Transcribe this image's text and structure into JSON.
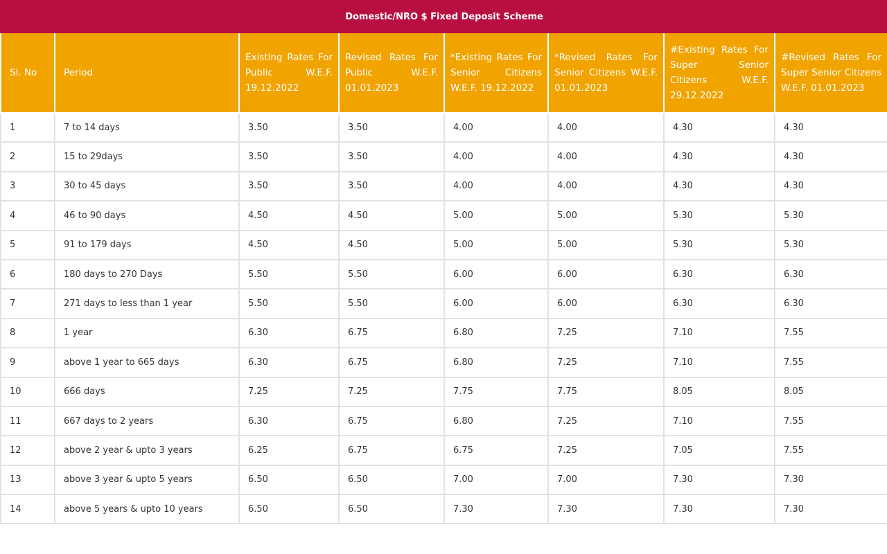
{
  "table": {
    "title": "Domestic/NRO $ Fixed Deposit Scheme",
    "header": [
      "Sl. No",
      "Period",
      "Existing Rates For Public W.E.F. 19.12.2022",
      "Revised Rates For Public W.E.F. 01.01.2023",
      "*Existing Rates For Senior Citizens W.E.F. 19.12.2022",
      "*Revised Rates For Senior Citizens W.E.F. 01.01.2023",
      "#Existing Rates For Super Senior Citizens W.E.F. 29.12.2022",
      "#Revised Rates For Super Senior Citizens W.E.F. 01.01.2023"
    ],
    "rows": [
      [
        "1",
        "7 to 14 days",
        "3.50",
        "3.50",
        "4.00",
        "4.00",
        "4.30",
        "4.30"
      ],
      [
        "2",
        "15 to 29days",
        "3.50",
        "3.50",
        "4.00",
        "4.00",
        "4.30",
        "4.30"
      ],
      [
        "3",
        "30 to 45 days",
        "3.50",
        "3.50",
        "4.00",
        "4.00",
        "4.30",
        "4.30"
      ],
      [
        "4",
        "46 to 90 days",
        "4.50",
        "4.50",
        "5.00",
        "5.00",
        "5.30",
        "5.30"
      ],
      [
        "5",
        "91 to 179 days",
        "4.50",
        "4.50",
        "5.00",
        "5.00",
        "5.30",
        "5.30"
      ],
      [
        "6",
        "180 days to 270 Days",
        "5.50",
        "5.50",
        "6.00",
        "6.00",
        "6.30",
        "6.30"
      ],
      [
        "7",
        "271 days to less than 1 year",
        "5.50",
        "5.50",
        "6.00",
        "6.00",
        "6.30",
        "6.30"
      ],
      [
        "8",
        "1 year",
        "6.30",
        "6.75",
        "6.80",
        "7.25",
        "7.10",
        "7.55"
      ],
      [
        "9",
        "above 1 year to 665 days",
        "6.30",
        "6.75",
        "6.80",
        "7.25",
        "7.10",
        "7.55"
      ],
      [
        "10",
        "666 days",
        "7.25",
        "7.25",
        "7.75",
        "7.75",
        "8.05",
        "8.05"
      ],
      [
        "11",
        "667 days to 2 years",
        "6.30",
        "6.75",
        "6.80",
        "7.25",
        "7.10",
        "7.55"
      ],
      [
        "12",
        "above 2 year & upto 3 years",
        "6.25",
        "6.75",
        "6.75",
        "7.25",
        "7.05",
        "7.55"
      ],
      [
        "13",
        "above 3 year & upto 5 years",
        "6.50",
        "6.50",
        "7.00",
        "7.00",
        "7.30",
        "7.30"
      ],
      [
        "14",
        "above 5 years & upto 10 years",
        "6.50",
        "6.50",
        "7.30",
        "7.30",
        "7.30",
        "7.30"
      ]
    ]
  }
}
